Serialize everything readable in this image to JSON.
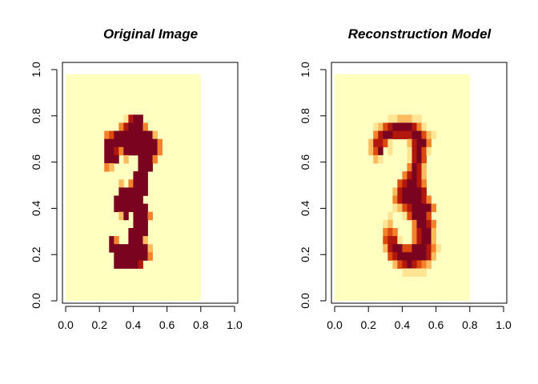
{
  "chart_data": [
    {
      "type": "heatmap",
      "title": "Original Image",
      "xlabel": "",
      "ylabel": "",
      "xlim": [
        0,
        1
      ],
      "ylim": [
        0,
        1
      ],
      "xticks": [
        "0.0",
        "0.2",
        "0.4",
        "0.6",
        "0.8",
        "1.0"
      ],
      "yticks": [
        "0.0",
        "0.2",
        "0.4",
        "0.6",
        "0.8",
        "1.0"
      ],
      "grid": false,
      "colormap": [
        "#ffffc0",
        "#ffe594",
        "#fdbb60",
        "#f3822c",
        "#dd4a10",
        "#b2170b",
        "#7a0420"
      ],
      "background": "#ffffc0",
      "rows": 28,
      "cols": 28,
      "pixels": [
        "............................",
        "............................",
        "............................",
        "............................",
        "............................",
        "............1566............",
        "...........356663...........",
        "........34666666662.........",
        "........666666666663........",
        "........665366666663........",
        "........666.2..6663.........",
        "........32.....666..........",
        "..............666...........",
        "...........2.3666...........",
        "...........666666...........",
        "..........666666............",
        "..........6666666...........",
        "...........26.6663..........",
        "..............666...........",
        ".............6666...........",
        ".........63..6662...........",
        ".........666666662..........",
        "..........66666663..........",
        "..........666665............",
        "............................",
        "............................",
        "............................",
        "............................"
      ]
    },
    {
      "type": "heatmap",
      "title": "Reconstruction Model",
      "xlabel": "",
      "ylabel": "",
      "xlim": [
        0,
        1
      ],
      "ylim": [
        0,
        1
      ],
      "xticks": [
        "0.0",
        "0.2",
        "0.4",
        "0.6",
        "0.8",
        "1.0"
      ],
      "yticks": [
        "0.0",
        "0.2",
        "0.4",
        "0.6",
        "0.8",
        "1.0"
      ],
      "grid": false,
      "colormap": [
        "#ffffc0",
        "#ffe594",
        "#fdbb60",
        "#f3822c",
        "#dd4a10",
        "#b2170b",
        "#7a0420"
      ],
      "background": "#ffffc0",
      "rows": 28,
      "cols": 28,
      "pixels": [
        "............................",
        "............................",
        "............................",
        "............................",
        "............................",
        "...........1122211..........",
        "........12456666531.........",
        "........3566555566421.......",
        ".......25541...25663........",
        ".......246.1...15641........",
        "........21.....1564.........",
        "...............3652.........",
        "..............35652.........",
        ".............456653.........",
        "............2566665.........",
        "............35666653........",
        "............124566663.......",
        "...........1..146664........",
        "..........12....36653.......",
        "..........343...35662.......",
        "..........4551..35662.......",
        "..........256644666531......",
        "...........4566666652.......",
        "............24565432........",
        "..............11111.........",
        "............................",
        "............................",
        "............................"
      ]
    }
  ]
}
